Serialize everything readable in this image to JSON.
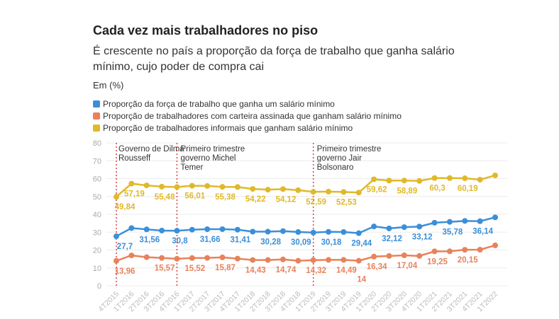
{
  "chart_data": {
    "type": "line",
    "title": "Cada vez mais trabalhadores no piso",
    "subtitle": "É crescente no país a proporção da força de trabalho que ganha salário mínimo, cujo poder de compra cai",
    "ylabel": "Em (%)",
    "ylim": [
      0,
      80
    ],
    "yticks": [
      0,
      10,
      20,
      30,
      40,
      50,
      60,
      70,
      80
    ],
    "grid": true,
    "legend_position": "top-left",
    "categories": [
      "4T2015",
      "1T2016",
      "2T2016",
      "3T2016",
      "4T2016",
      "1T2017",
      "2T2017",
      "3T2017",
      "4T2017",
      "1T2018",
      "2T2018",
      "3T2018",
      "4T2018",
      "1T2019",
      "2T2019",
      "3T2019",
      "4T2019",
      "1T2020",
      "2T2020",
      "3T2020",
      "4T2020",
      "1T2021",
      "2T2021",
      "3T2021",
      "4T2021",
      "1T2022"
    ],
    "series": [
      {
        "name": "Proporção da força de trabalho que ganha um salário mínimo",
        "color": "#3b8fd9",
        "values": [
          27.7,
          32.3,
          31.56,
          30.9,
          30.8,
          31.4,
          31.66,
          31.7,
          31.41,
          30.3,
          30.28,
          30.6,
          30.09,
          29.8,
          30.18,
          30.1,
          29.44,
          33.2,
          32.12,
          32.8,
          33.12,
          35.3,
          35.78,
          36.3,
          36.14,
          38.3
        ],
        "labeled": {
          "0": "27,7",
          "2": "31,56",
          "4": "30,8",
          "6": "31,66",
          "8": "31,41",
          "10": "30,28",
          "12": "30,09",
          "14": "30,18",
          "16": "29,44",
          "18": "32,12",
          "20": "33,12",
          "22": "35,78",
          "24": "36,14"
        }
      },
      {
        "name": "Proporção de trabalhadores com carteira assinada que ganham salário mínimo",
        "color": "#e8825a",
        "values": [
          13.96,
          17.0,
          16.0,
          15.57,
          15.1,
          15.52,
          15.6,
          15.87,
          15.2,
          14.43,
          14.43,
          14.74,
          14.0,
          14.32,
          14.49,
          14.49,
          14.0,
          16.34,
          16.7,
          17.04,
          16.7,
          19.25,
          19.3,
          20.15,
          20.2,
          22.6
        ],
        "labeled": {
          "0": "13,96",
          "3": "15,57",
          "5": "15,52",
          "7": "15,87",
          "9": "14,43",
          "11": "14,74",
          "13": "14,32",
          "15": "14,49",
          "16": "14",
          "17": "16,34",
          "19": "17,04",
          "21": "19,25",
          "23": "20,15"
        }
      },
      {
        "name": "Proporção de trabalhadores informais que ganham salário mínimo",
        "color": "#e0b92a",
        "values": [
          49.84,
          57.19,
          56.2,
          55.48,
          55.3,
          56.01,
          55.9,
          55.38,
          55.3,
          54.22,
          53.8,
          54.12,
          53.5,
          52.59,
          52.7,
          52.53,
          52.2,
          59.62,
          58.9,
          58.89,
          58.7,
          60.3,
          60.3,
          60.19,
          59.4,
          61.8
        ],
        "labeled": {
          "0": "49,84",
          "1": "57,19",
          "3": "55,48",
          "5": "56,01",
          "7": "55,38",
          "9": "54,22",
          "11": "54,12",
          "13": "52,59",
          "15": "52,53",
          "17": "59,62",
          "19": "58,89",
          "21": "60,3",
          "23": "60,19"
        }
      }
    ],
    "annotations": [
      {
        "category": "4T2015",
        "lines": [
          "Governo de Dilma",
          "Rousseff"
        ]
      },
      {
        "category": "4T2016",
        "lines": [
          "Primeiro trimestre",
          "governo Michel",
          "Temer"
        ]
      },
      {
        "category": "1T2019",
        "lines": [
          "Primeiro trimestre",
          "governo Jair",
          "Bolsonaro"
        ]
      }
    ]
  }
}
